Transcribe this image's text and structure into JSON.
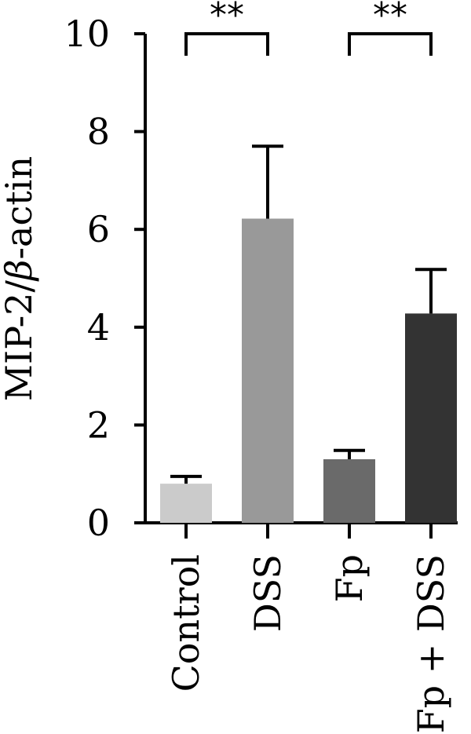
{
  "chart_data": {
    "type": "bar",
    "categories": [
      "Control",
      "DSS",
      "Fp",
      "Fp + DSS"
    ],
    "values": [
      0.8,
      6.22,
      1.3,
      4.28
    ],
    "errors": [
      0.15,
      1.48,
      0.18,
      0.9
    ],
    "colors": [
      "#cbcbcb",
      "#999999",
      "#6a6a6a",
      "#333333"
    ],
    "ylabel": {
      "pre": "MIP-2/",
      "greek": "β",
      "post": "-actin"
    },
    "ylim": [
      0,
      10
    ],
    "yticks": [
      "0",
      "2",
      "4",
      "6",
      "8",
      "10"
    ],
    "grid": false,
    "significance": [
      {
        "from": 0,
        "to": 1,
        "label": "**"
      },
      {
        "from": 2,
        "to": 3,
        "label": "**"
      }
    ]
  }
}
